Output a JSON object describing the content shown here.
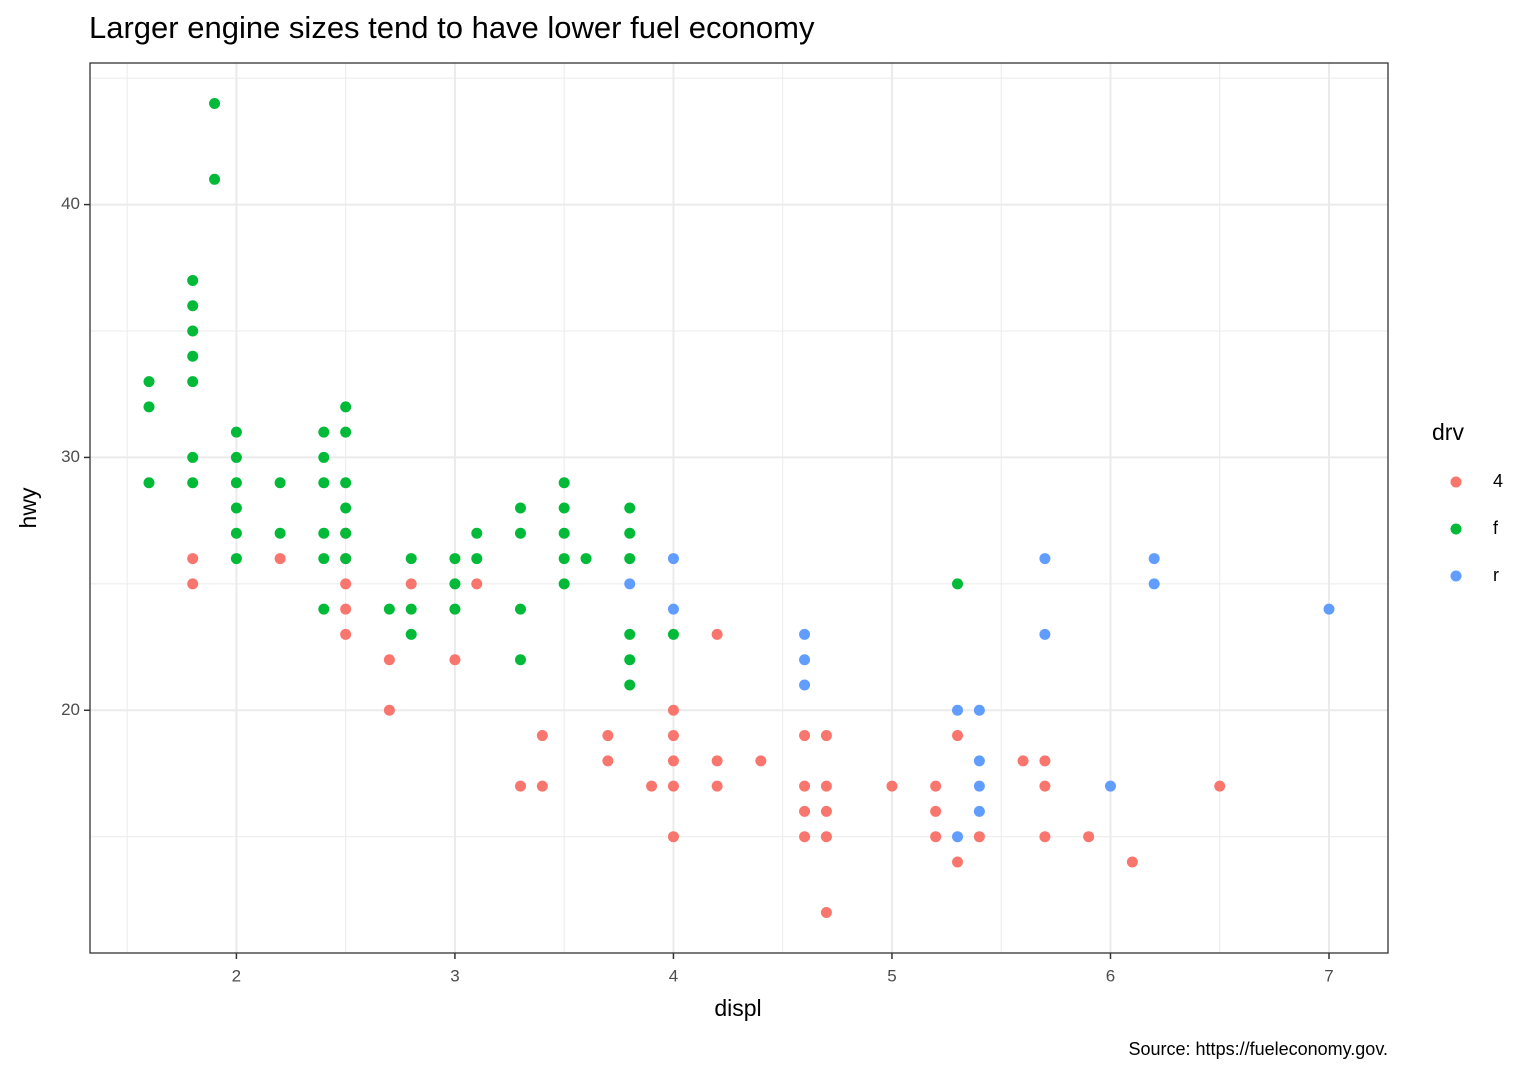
{
  "chart_data": {
    "type": "scatter",
    "title": "Larger engine sizes tend to have lower fuel economy",
    "x_label": "displ",
    "y_label": "hwy",
    "caption": "Source: https://fueleconomy.gov.",
    "legend_title": "drv",
    "legend_position": "right",
    "grid": true,
    "xlim": [
      1.33,
      7.27
    ],
    "ylim": [
      10.4,
      45.6
    ],
    "xticks": [
      2,
      3,
      4,
      5,
      6,
      7
    ],
    "yticks": [
      20,
      30,
      40
    ],
    "x_minor_ticks": [
      1.5,
      2.5,
      3.5,
      4.5,
      5.5,
      6.5
    ],
    "y_minor_ticks": [
      15,
      25,
      35,
      45
    ],
    "series": [
      {
        "name": "4",
        "color": "#F8766D",
        "x": [
          1.8,
          1.8,
          2.2,
          2.5,
          2.5,
          2.5,
          2.5,
          2.5,
          2.7,
          2.7,
          2.8,
          3.0,
          3.1,
          3.3,
          3.4,
          3.4,
          3.7,
          3.7,
          3.9,
          4.0,
          4.0,
          4.0,
          4.0,
          4.0,
          4.2,
          4.2,
          4.2,
          4.4,
          4.6,
          4.6,
          4.6,
          4.6,
          4.7,
          4.7,
          4.7,
          4.7,
          4.7,
          5.0,
          5.2,
          5.2,
          5.2,
          5.3,
          5.3,
          5.4,
          5.6,
          5.7,
          5.7,
          5.7,
          5.9,
          6.1,
          6.5
        ],
        "values": [
          26,
          25,
          26,
          27,
          26,
          25,
          24,
          23,
          22,
          20,
          25,
          22,
          25,
          17,
          19,
          17,
          19,
          18,
          17,
          20,
          19,
          18,
          17,
          15,
          23,
          18,
          17,
          18,
          19,
          17,
          16,
          15,
          19,
          17,
          16,
          15,
          12,
          17,
          17,
          16,
          15,
          19,
          14,
          15,
          18,
          18,
          17,
          15,
          15,
          14,
          17
        ]
      },
      {
        "name": "f",
        "color": "#00BA38",
        "x": [
          1.6,
          1.6,
          1.6,
          1.8,
          1.8,
          1.8,
          1.8,
          1.8,
          1.8,
          1.8,
          1.9,
          1.9,
          2.0,
          2.0,
          2.0,
          2.0,
          2.0,
          2.0,
          2.2,
          2.2,
          2.4,
          2.4,
          2.4,
          2.4,
          2.4,
          2.4,
          2.5,
          2.5,
          2.5,
          2.5,
          2.5,
          2.5,
          2.7,
          2.8,
          2.8,
          2.8,
          3.0,
          3.0,
          3.0,
          3.1,
          3.1,
          3.3,
          3.3,
          3.3,
          3.3,
          3.5,
          3.5,
          3.5,
          3.5,
          3.5,
          3.6,
          3.8,
          3.8,
          3.8,
          3.8,
          3.8,
          3.8,
          4.0,
          5.3
        ],
        "values": [
          33,
          32,
          29,
          37,
          36,
          35,
          34,
          33,
          30,
          29,
          44,
          41,
          31,
          30,
          29,
          28,
          27,
          26,
          29,
          27,
          31,
          30,
          29,
          27,
          26,
          24,
          32,
          31,
          29,
          28,
          27,
          26,
          24,
          26,
          24,
          23,
          26,
          25,
          24,
          27,
          26,
          28,
          27,
          24,
          22,
          29,
          28,
          27,
          26,
          25,
          26,
          28,
          27,
          26,
          23,
          22,
          21,
          23,
          25
        ]
      },
      {
        "name": "r",
        "color": "#619CFF",
        "x": [
          3.8,
          4.0,
          4.0,
          4.6,
          4.6,
          4.6,
          5.3,
          5.3,
          5.4,
          5.4,
          5.4,
          5.4,
          5.7,
          5.7,
          6.0,
          6.2,
          6.2,
          7.0
        ],
        "values": [
          25,
          26,
          24,
          23,
          22,
          21,
          20,
          15,
          20,
          18,
          17,
          16,
          26,
          23,
          17,
          26,
          25,
          24
        ]
      }
    ]
  }
}
